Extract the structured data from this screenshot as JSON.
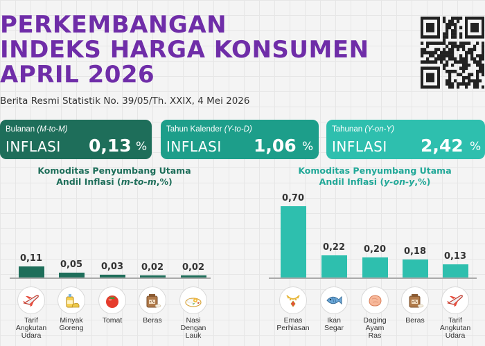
{
  "header": {
    "title_lines": [
      "PERKEMBANGAN",
      "INDEKS HARGA KONSUMEN",
      "APRIL 2026"
    ],
    "subtitle": "Berita Resmi Statistik No. 39/05/Th. XXIX, 4 Mei 2026"
  },
  "cards": [
    {
      "period": "Bulanan",
      "period_code": "(M-to-M)",
      "label": "INFLASI",
      "value": "0,13",
      "unit": "%",
      "color": "#1e6e5a"
    },
    {
      "period": "Tahun Kalender",
      "period_code": "(Y-to-D)",
      "label": "INFLASI",
      "value": "1,06",
      "unit": "%",
      "color": "#1d9e8a"
    },
    {
      "period": "Tahunan",
      "period_code": "(Y-on-Y)",
      "label": "INFLASI",
      "value": "2,42",
      "unit": "%",
      "color": "#2ebfae"
    }
  ],
  "panels": [
    {
      "title_line1": "Komoditas Penyumbang Utama",
      "title_line2_prefix": "Andil Inflasi (",
      "title_line2_italic": "m-to-m",
      "title_line2_suffix": ",%)",
      "color": "#1e6e5a",
      "title_color": "#1e6e5a"
    },
    {
      "title_line1": "Komoditas Penyumbang Utama",
      "title_line2_prefix": "Andil Inflasi (",
      "title_line2_italic": "y-on-y",
      "title_line2_suffix": ",%)",
      "color": "#2ebfae",
      "title_color": "#22a898"
    }
  ],
  "chart_data": [
    {
      "type": "bar",
      "categories": [
        "Tarif Angkutan Udara",
        "Minyak Goreng",
        "Tomat",
        "Beras",
        "Nasi Dengan Lauk"
      ],
      "values": [
        0.11,
        0.05,
        0.03,
        0.02,
        0.02
      ],
      "value_labels": [
        "0,11",
        "0,05",
        "0,03",
        "0,02",
        "0,02"
      ],
      "icons": [
        "airplane-icon",
        "cooking-oil-icon",
        "tomato-icon",
        "rice-icon",
        "rice-dish-icon"
      ]
    },
    {
      "type": "bar",
      "categories": [
        "Emas Perhiasan",
        "Ikan Segar",
        "Daging Ayam Ras",
        "Beras",
        "Tarif Angkutan Udara"
      ],
      "values": [
        0.7,
        0.22,
        0.2,
        0.18,
        0.13
      ],
      "value_labels": [
        "0,70",
        "0,22",
        "0,20",
        "0,18",
        "0,13"
      ],
      "icons": [
        "gold-jewelry-icon",
        "fish-icon",
        "chicken-meat-icon",
        "rice-icon",
        "airplane-icon"
      ]
    }
  ]
}
